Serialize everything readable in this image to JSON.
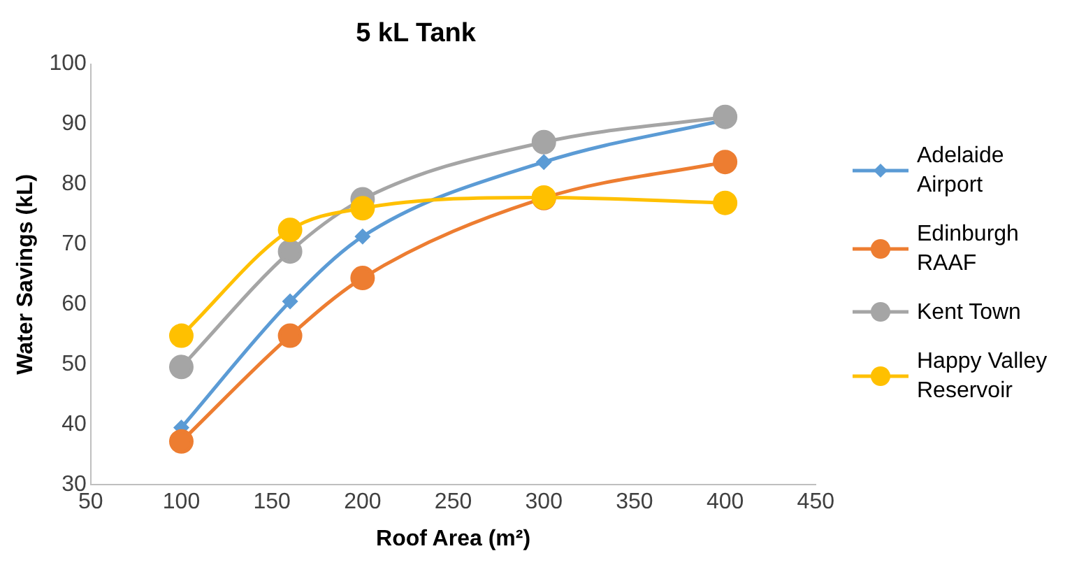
{
  "chart_data": {
    "type": "line",
    "title": "5 kL Tank",
    "xlabel": "Roof Area (m²)",
    "ylabel": "Water Savings (kL)",
    "x": [
      100,
      160,
      200,
      300,
      400
    ],
    "series": [
      {
        "name": "Adelaide Airport",
        "color": "#5b9bd5",
        "marker": "diamond",
        "values": [
          39.5,
          60.5,
          71.3,
          83.7,
          90.7
        ]
      },
      {
        "name": "Edinburgh RAAF",
        "color": "#ed7d31",
        "marker": "circle",
        "values": [
          37.2,
          54.8,
          64.4,
          77.7,
          83.7
        ]
      },
      {
        "name": "Kent Town",
        "color": "#a5a5a5",
        "marker": "circle",
        "values": [
          49.6,
          68.8,
          77.5,
          87,
          91.2
        ]
      },
      {
        "name": "Happy Valley Reservoir",
        "color": "#ffc000",
        "marker": "circle",
        "values": [
          54.8,
          72.4,
          76,
          77.8,
          76.9
        ]
      }
    ],
    "xlim": [
      50,
      450
    ],
    "xticks": [
      50,
      100,
      150,
      200,
      250,
      300,
      350,
      400,
      450
    ],
    "ylim": [
      30,
      100
    ],
    "yticks": [
      30,
      40,
      50,
      60,
      70,
      80,
      90,
      100
    ],
    "grid": false,
    "legend": "right",
    "line_style": "solid"
  }
}
